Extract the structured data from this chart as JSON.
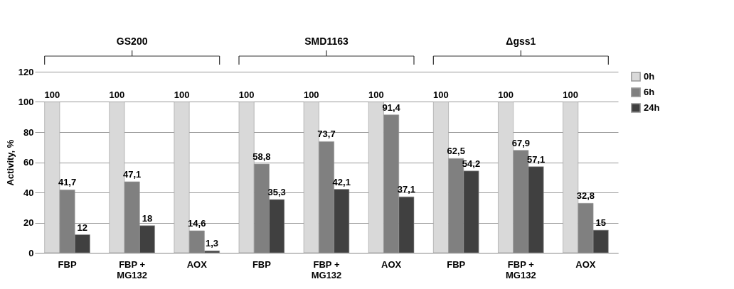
{
  "chart_data": {
    "type": "bar",
    "ylabel": "Activity, %",
    "categories": [
      "FBP",
      "FBP +\nMG132",
      "AOX",
      "FBP",
      "FBP +\nMG132",
      "AOX",
      "FBP",
      "FBP +\nMG132",
      "AOX"
    ],
    "series": [
      {
        "name": "0h",
        "color": "#d9d9d9",
        "values": [
          100,
          100,
          100,
          100,
          100,
          100,
          100,
          100,
          100
        ],
        "value_labels": [
          "100",
          "100",
          "100",
          "100",
          "100",
          "100",
          "100",
          "100",
          "100"
        ]
      },
      {
        "name": "6h",
        "color": "#808080",
        "values": [
          41.7,
          47.1,
          14.6,
          58.8,
          73.7,
          91.4,
          62.5,
          67.9,
          32.8
        ],
        "value_labels": [
          "41,7",
          "47,1",
          "14,6",
          "58,8",
          "73,7",
          "91,4",
          "62,5",
          "67,9",
          "32,8"
        ]
      },
      {
        "name": "24h",
        "color": "#404040",
        "values": [
          12,
          18,
          1.3,
          35.3,
          42.1,
          37.1,
          54.2,
          57.1,
          15
        ],
        "value_labels": [
          "12",
          "18",
          "1,3",
          "35,3",
          "42,1",
          "37,1",
          "54,2",
          "57,1",
          "15"
        ]
      }
    ],
    "annotations": [
      "GS200",
      "SMD1163",
      "Δgss1"
    ],
    "ylim": [
      0,
      120
    ],
    "yticks": [
      0,
      20,
      40,
      60,
      80,
      100,
      120
    ],
    "grid": "y",
    "legend": "right"
  }
}
